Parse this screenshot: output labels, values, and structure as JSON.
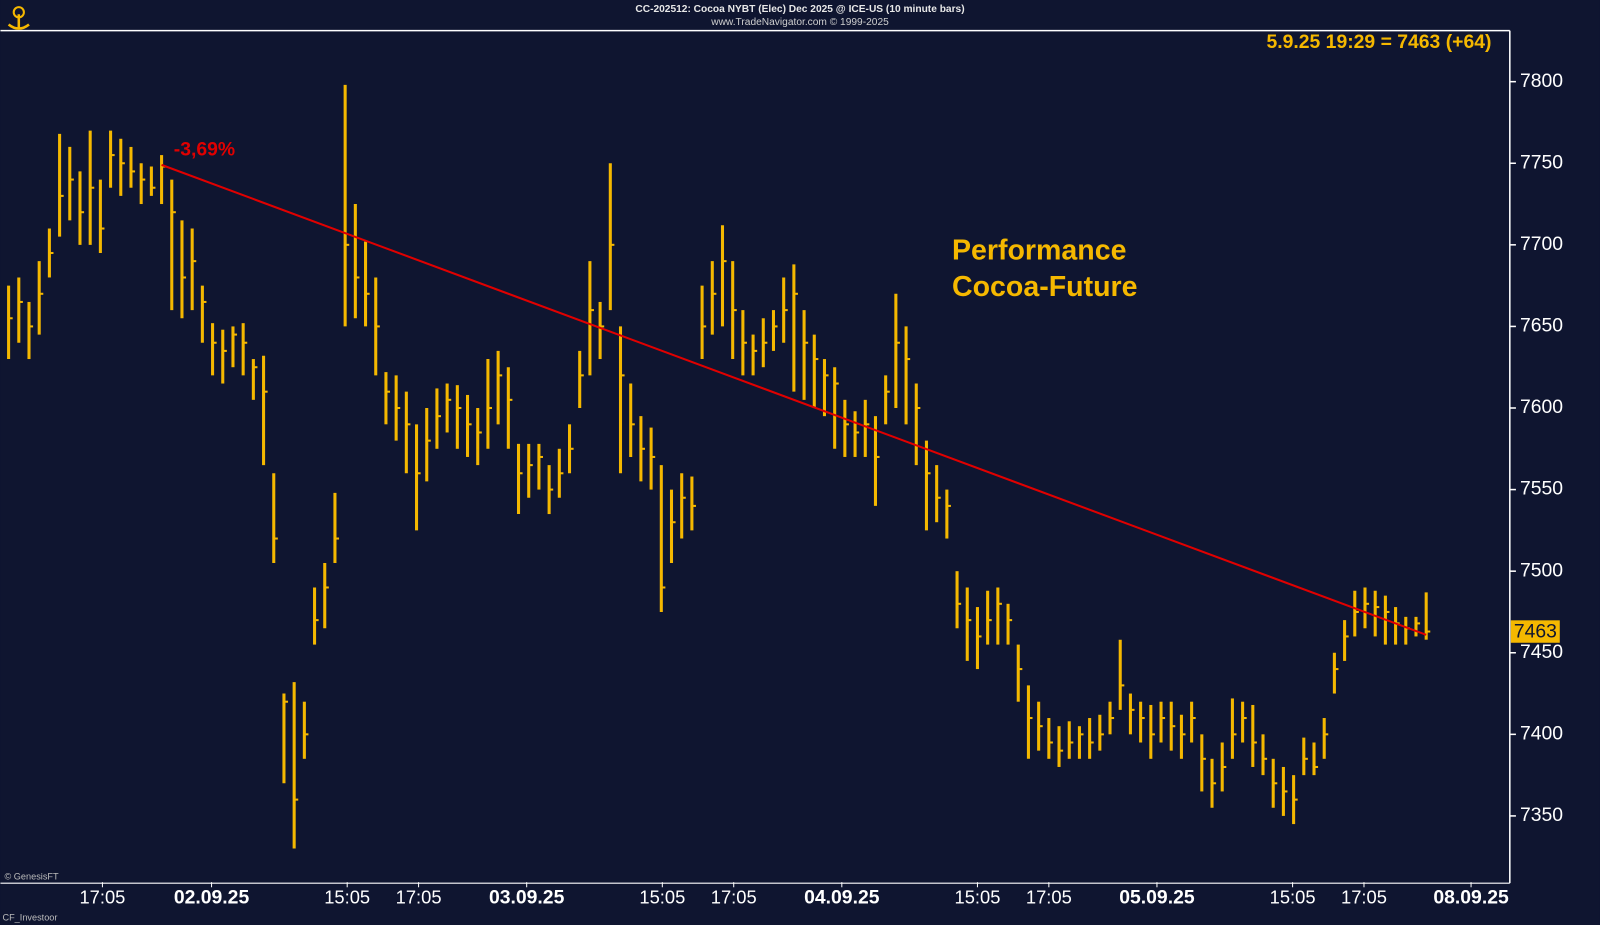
{
  "chart_data": {
    "type": "hlc",
    "title": "CC-202512: Cocoa NYBT (Elec) Dec 2025 @ ICE-US (10 minute bars)",
    "subtitle": "www.TradeNavigator.com © 1999-2025",
    "info": "5.9.25 19:29 = 7463 (+64)",
    "annotation": [
      "Performance",
      "Cocoa-Future"
    ],
    "trend_label": "-3,69%",
    "footer": [
      "© GenesisFT",
      "CF_Investoor"
    ],
    "color": "#f5b800",
    "trend_color": "#e00000",
    "high": [
      7675,
      7680,
      7665,
      7690,
      7710,
      7768,
      7760,
      7745,
      7770,
      7740,
      7770,
      7765,
      7760,
      7750,
      7748,
      7755,
      7740,
      7715,
      7710,
      7675,
      7652,
      7648,
      7650,
      7652,
      7630,
      7632,
      7560,
      7425,
      7432,
      7420,
      7490,
      7505,
      7548,
      7798,
      7725,
      7702,
      7680,
      7622,
      7620,
      7610,
      7590,
      7600,
      7612,
      7615,
      7614,
      7608,
      7600,
      7630,
      7635,
      7625,
      7578,
      7578,
      7578,
      7565,
      7575,
      7590,
      7635,
      7690,
      7665,
      7750,
      7650,
      7615,
      7595,
      7588,
      7565,
      7550,
      7560,
      7558,
      7675,
      7690,
      7712,
      7690,
      7660,
      7645,
      7655,
      7660,
      7680,
      7688,
      7660,
      7645,
      7630,
      7625,
      7605,
      7598,
      7605,
      7595,
      7620,
      7670,
      7650,
      7615,
      7580,
      7565,
      7550,
      7500,
      7490,
      7478,
      7488,
      7490,
      7480,
      7455,
      7430,
      7420,
      7410,
      7405,
      7408,
      7405,
      7410,
      7412,
      7420,
      7458,
      7425,
      7420,
      7418,
      7420,
      7420,
      7412,
      7420,
      7400,
      7385,
      7395,
      7422,
      7420,
      7418,
      7400,
      7385,
      7380,
      7375,
      7398,
      7395,
      7410,
      7450,
      7470,
      7488,
      7490,
      7488,
      7485,
      7478,
      7472,
      7472,
      7487
    ],
    "low": [
      7630,
      7640,
      7630,
      7645,
      7680,
      7705,
      7715,
      7700,
      7700,
      7695,
      7735,
      7730,
      7735,
      7725,
      7730,
      7725,
      7660,
      7655,
      7660,
      7640,
      7620,
      7615,
      7625,
      7620,
      7605,
      7565,
      7505,
      7370,
      7330,
      7385,
      7455,
      7465,
      7505,
      7650,
      7655,
      7650,
      7620,
      7590,
      7580,
      7560,
      7525,
      7555,
      7575,
      7585,
      7575,
      7570,
      7565,
      7575,
      7590,
      7575,
      7535,
      7545,
      7550,
      7535,
      7545,
      7560,
      7600,
      7620,
      7630,
      7660,
      7560,
      7570,
      7555,
      7550,
      7475,
      7505,
      7520,
      7525,
      7630,
      7645,
      7650,
      7630,
      7620,
      7620,
      7625,
      7635,
      7640,
      7610,
      7605,
      7600,
      7595,
      7575,
      7570,
      7570,
      7570,
      7540,
      7590,
      7600,
      7590,
      7565,
      7525,
      7530,
      7520,
      7465,
      7445,
      7440,
      7455,
      7455,
      7455,
      7420,
      7385,
      7390,
      7385,
      7380,
      7385,
      7385,
      7385,
      7390,
      7400,
      7415,
      7400,
      7395,
      7385,
      7395,
      7390,
      7385,
      7395,
      7365,
      7355,
      7365,
      7385,
      7395,
      7380,
      7375,
      7355,
      7350,
      7345,
      7375,
      7375,
      7385,
      7425,
      7445,
      7460,
      7465,
      7460,
      7455,
      7455,
      7455,
      7460,
      7458
    ],
    "close": [
      7655,
      7665,
      7650,
      7670,
      7695,
      7730,
      7740,
      7720,
      7735,
      7710,
      7755,
      7750,
      7745,
      7740,
      7735,
      7748,
      7720,
      7680,
      7690,
      7665,
      7640,
      7635,
      7645,
      7640,
      7625,
      7610,
      7520,
      7420,
      7360,
      7400,
      7470,
      7490,
      7520,
      7700,
      7680,
      7670,
      7650,
      7610,
      7600,
      7590,
      7560,
      7580,
      7595,
      7605,
      7600,
      7590,
      7585,
      7600,
      7620,
      7605,
      7560,
      7565,
      7570,
      7550,
      7560,
      7575,
      7620,
      7660,
      7650,
      7700,
      7620,
      7590,
      7575,
      7570,
      7490,
      7530,
      7545,
      7540,
      7650,
      7670,
      7690,
      7660,
      7640,
      7635,
      7640,
      7650,
      7660,
      7670,
      7640,
      7630,
      7620,
      7615,
      7590,
      7585,
      7590,
      7570,
      7610,
      7640,
      7630,
      7600,
      7560,
      7545,
      7540,
      7480,
      7470,
      7460,
      7470,
      7480,
      7470,
      7440,
      7410,
      7405,
      7395,
      7390,
      7395,
      7400,
      7395,
      7400,
      7410,
      7430,
      7415,
      7410,
      7400,
      7410,
      7405,
      7400,
      7410,
      7385,
      7370,
      7380,
      7400,
      7410,
      7395,
      7385,
      7370,
      7365,
      7360,
      7385,
      7380,
      7400,
      7440,
      7460,
      7475,
      7480,
      7478,
      7475,
      7468,
      7465,
      7468,
      7463
    ],
    "trendline": {
      "x": [
        15,
        139
      ],
      "y": [
        7749,
        7461
      ]
    },
    "xlim": [
      -0.8,
      147.2
    ],
    "xticks": [
      {
        "value": 9.2,
        "label": "17:05"
      },
      {
        "value": 19.9,
        "label": "02.09.25"
      },
      {
        "value": 33.2,
        "label": "15:05"
      },
      {
        "value": 40.2,
        "label": "17:05"
      },
      {
        "value": 50.8,
        "label": "03.09.25"
      },
      {
        "value": 64.1,
        "label": "15:05"
      },
      {
        "value": 71.1,
        "label": "17:05"
      },
      {
        "value": 81.7,
        "label": "04.09.25"
      },
      {
        "value": 95,
        "label": "15:05"
      },
      {
        "value": 102,
        "label": "17:05"
      },
      {
        "value": 112.6,
        "label": "05.09.25"
      },
      {
        "value": 125.9,
        "label": "15:05"
      },
      {
        "value": 132.9,
        "label": "17:05"
      },
      {
        "value": 143.4,
        "label": "08.09.25"
      }
    ],
    "ylim": [
      7309.4,
      7831.3
    ],
    "yticks": [
      7350,
      7400,
      7450,
      7500,
      7550,
      7600,
      7650,
      7700,
      7750,
      7800
    ]
  }
}
